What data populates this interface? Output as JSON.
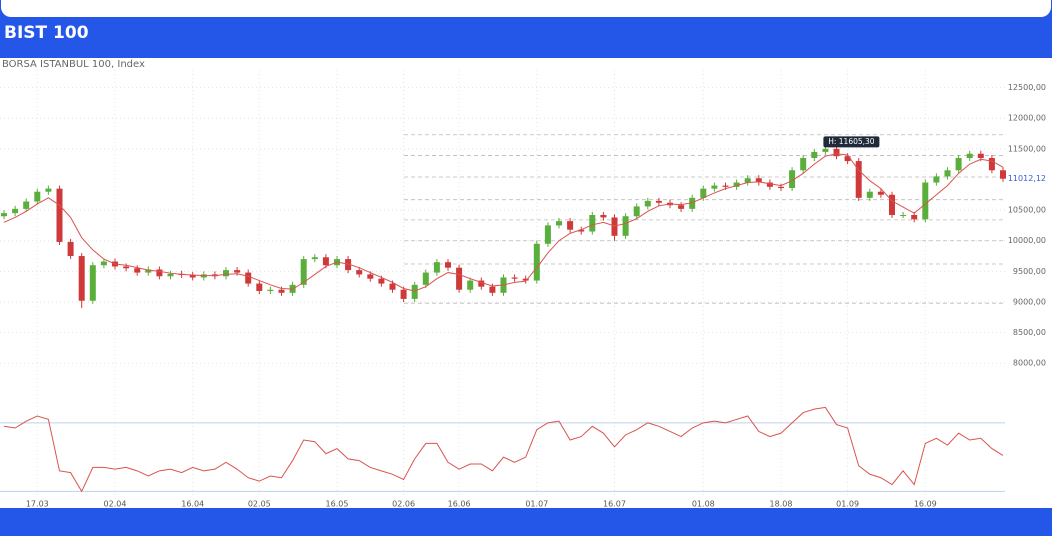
{
  "header": {
    "title": "BIST 100"
  },
  "chart_data": {
    "type": "candlestick",
    "subtitle": "BORSA ISTANBUL 100, Index",
    "categories": [
      null,
      null,
      null,
      "17.03",
      null,
      null,
      null,
      null,
      null,
      null,
      "02.04",
      null,
      null,
      null,
      null,
      null,
      null,
      "16.04",
      null,
      null,
      null,
      null,
      null,
      "02.05",
      null,
      null,
      null,
      null,
      null,
      null,
      "16.05",
      null,
      null,
      null,
      null,
      null,
      "02.06",
      null,
      null,
      null,
      null,
      "16.06",
      null,
      null,
      null,
      null,
      null,
      null,
      "01.07",
      null,
      null,
      null,
      null,
      null,
      null,
      "16.07",
      null,
      null,
      null,
      null,
      null,
      null,
      null,
      "01.08",
      null,
      null,
      null,
      null,
      null,
      null,
      "18.08",
      null,
      null,
      null,
      null,
      null,
      "01.09",
      null,
      null,
      null,
      null,
      null,
      null,
      "16.09",
      null,
      null,
      null,
      null,
      null,
      null,
      null
    ],
    "open": [
      10400,
      10450,
      10520,
      10640,
      10800,
      10850,
      9980,
      9750,
      9020,
      9600,
      9660,
      9580,
      9550,
      9480,
      9530,
      9420,
      9460,
      9440,
      9400,
      9450,
      9420,
      9520,
      9480,
      9300,
      9180,
      9200,
      9150,
      9280,
      9700,
      9730,
      9600,
      9700,
      9520,
      9450,
      9380,
      9300,
      9200,
      9050,
      9280,
      9480,
      9650,
      9560,
      9200,
      9350,
      9250,
      9150,
      9400,
      9380,
      9350,
      9950,
      10250,
      10320,
      10180,
      10150,
      10420,
      10380,
      10080,
      10400,
      10560,
      10650,
      10620,
      10580,
      10520,
      10700,
      10850,
      10900,
      10880,
      10950,
      11020,
      10950,
      10880,
      10860,
      11150,
      11350,
      11450,
      11500,
      11380,
      11300,
      10700,
      10800,
      10750,
      10420,
      10420,
      10350,
      10950,
      11050,
      11150,
      11350,
      11420,
      11350,
      11150
    ],
    "high": [
      10500,
      10570,
      10690,
      10850,
      10900,
      10900,
      10030,
      9800,
      9650,
      9710,
      9710,
      9630,
      9600,
      9580,
      9580,
      9510,
      9510,
      9490,
      9500,
      9500,
      9570,
      9570,
      9530,
      9350,
      9250,
      9250,
      9330,
      9750,
      9780,
      9780,
      9750,
      9750,
      9570,
      9500,
      9430,
      9350,
      9250,
      9330,
      9530,
      9700,
      9700,
      9610,
      9400,
      9400,
      9300,
      9450,
      9450,
      9430,
      10000,
      10300,
      10370,
      10370,
      10230,
      10470,
      10470,
      10430,
      10450,
      10610,
      10700,
      10700,
      10670,
      10630,
      10750,
      10900,
      10950,
      10950,
      11000,
      11070,
      11070,
      11000,
      10930,
      11200,
      11400,
      11500,
      11605.3,
      11550,
      11430,
      11350,
      10850,
      10850,
      10800,
      10470,
      10470,
      11000,
      11100,
      11200,
      11400,
      11470,
      11470,
      11400,
      11200
    ],
    "low": [
      10350,
      10400,
      10470,
      10590,
      10750,
      9930,
      9700,
      8900,
      8970,
      9550,
      9530,
      9500,
      9430,
      9430,
      9370,
      9370,
      9390,
      9350,
      9350,
      9370,
      9370,
      9430,
      9250,
      9130,
      9130,
      9100,
      9100,
      9230,
      9650,
      9550,
      9550,
      9470,
      9400,
      9330,
      9250,
      9150,
      9000,
      9000,
      9230,
      9430,
      9510,
      9150,
      9150,
      9200,
      9100,
      9100,
      9330,
      9300,
      9300,
      9900,
      10200,
      10130,
      10100,
      10100,
      10330,
      10000,
      10030,
      10350,
      10510,
      10570,
      10530,
      10470,
      10470,
      10650,
      10800,
      10830,
      10830,
      10900,
      10900,
      10830,
      10810,
      10810,
      11100,
      11300,
      11400,
      11330,
      11250,
      10650,
      10650,
      10700,
      10370,
      10370,
      10300,
      10300,
      10900,
      11000,
      11100,
      11300,
      11300,
      11100,
      10960
    ],
    "close": [
      10450,
      10520,
      10640,
      10800,
      10850,
      9980,
      9750,
      9020,
      9600,
      9660,
      9580,
      9550,
      9480,
      9530,
      9420,
      9460,
      9440,
      9400,
      9450,
      9420,
      9520,
      9480,
      9300,
      9180,
      9200,
      9150,
      9280,
      9700,
      9730,
      9600,
      9700,
      9520,
      9450,
      9380,
      9300,
      9200,
      9050,
      9280,
      9480,
      9650,
      9560,
      9200,
      9350,
      9250,
      9150,
      9400,
      9380,
      9350,
      9950,
      10250,
      10320,
      10180,
      10150,
      10420,
      10380,
      10080,
      10400,
      10560,
      10650,
      10620,
      10580,
      10520,
      10700,
      10850,
      10900,
      10880,
      10950,
      11020,
      10950,
      10880,
      10860,
      11150,
      11350,
      11450,
      11500,
      11380,
      11300,
      10700,
      10800,
      10750,
      10420,
      10420,
      10350,
      10950,
      11050,
      11150,
      11350,
      11420,
      11350,
      11150,
      11012.12
    ],
    "up_color": "#5aae3c",
    "down_color": "#d0393a",
    "ma": {
      "color": "#d9534f",
      "values": [
        10300,
        10380,
        10480,
        10600,
        10700,
        10580,
        10380,
        10050,
        9850,
        9700,
        9620,
        9600,
        9560,
        9520,
        9500,
        9470,
        9450,
        9440,
        9430,
        9430,
        9450,
        9460,
        9420,
        9350,
        9280,
        9220,
        9210,
        9320,
        9450,
        9580,
        9650,
        9620,
        9560,
        9480,
        9400,
        9320,
        9220,
        9180,
        9250,
        9380,
        9480,
        9450,
        9380,
        9320,
        9260,
        9280,
        9320,
        9340,
        9560,
        9800,
        10000,
        10120,
        10180,
        10260,
        10300,
        10240,
        10280,
        10360,
        10480,
        10570,
        10600,
        10590,
        10620,
        10700,
        10780,
        10850,
        10900,
        10950,
        10960,
        10930,
        10900,
        10980,
        11100,
        11250,
        11380,
        11420,
        11400,
        11150,
        10980,
        10850,
        10650,
        10550,
        10450,
        10600,
        10750,
        10900,
        11100,
        11250,
        11330,
        11300,
        11200
      ]
    },
    "ylim": [
      7400,
      12950
    ],
    "yticks": [
      {
        "value": 8000,
        "label": "8000,00"
      },
      {
        "value": 8500,
        "label": "8500,00"
      },
      {
        "value": 9000,
        "label": "9000,00"
      },
      {
        "value": 9500,
        "label": "9500,00"
      },
      {
        "value": 10000,
        "label": "10000,00"
      },
      {
        "value": 10500,
        "label": "10500,00"
      },
      {
        "value": 11500,
        "label": "11500,00"
      },
      {
        "value": 12000,
        "label": "12000,00"
      },
      {
        "value": 12500,
        "label": "12500,00"
      }
    ],
    "last_label": "11012,12",
    "high_label": "H: 11605,30",
    "levels": [
      11730,
      11390,
      11040,
      10670,
      10340,
      10000,
      9620,
      8980
    ],
    "grid": true,
    "oscillator": {
      "color": "#d9534f",
      "ylim": [
        25,
        81
      ],
      "levels": [
        70,
        30
      ],
      "values": [
        68,
        67,
        71,
        74,
        72,
        42,
        41,
        30,
        44,
        44,
        43,
        44,
        42,
        39,
        42,
        43,
        41,
        44,
        42,
        43,
        47,
        43,
        38,
        36,
        39,
        38,
        48,
        60,
        59,
        52,
        55,
        49,
        48,
        44,
        42,
        40,
        37,
        49,
        58,
        58,
        47,
        43,
        46,
        46,
        42,
        50,
        47,
        50,
        66,
        70,
        71,
        60,
        62,
        68,
        64,
        56,
        63,
        66,
        70,
        68,
        65,
        62,
        67,
        70,
        71,
        70,
        72,
        74,
        65,
        62,
        64,
        70,
        76,
        78,
        79,
        69,
        67,
        45,
        40,
        38,
        34,
        42,
        34,
        58,
        61,
        57,
        64,
        60,
        61,
        55,
        51
      ]
    }
  }
}
